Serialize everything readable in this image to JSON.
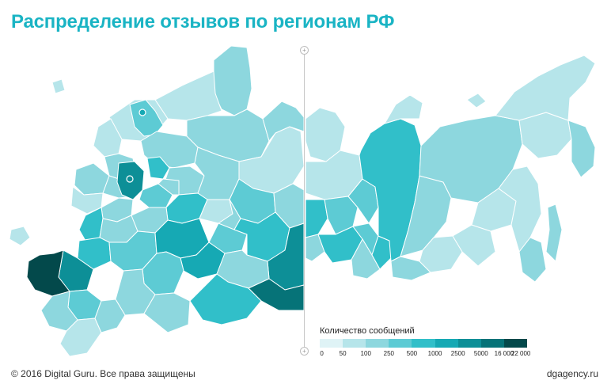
{
  "title": "Распределение отзывов по регионам РФ",
  "map": {
    "palette": [
      "#dff3f6",
      "#b6e5ea",
      "#8dd7de",
      "#5dcbd4",
      "#31bfc9",
      "#16a9b4",
      "#0d8f97",
      "#067378",
      "#03494b"
    ],
    "moscow_marker_color": "#0d8f97",
    "spb_marker_color": "#16a9b4"
  },
  "legend": {
    "title": "Количество сообщений",
    "bins": [
      "0",
      "50",
      "100",
      "250",
      "500",
      "1000",
      "2500",
      "5000",
      "16 000",
      "22 000"
    ]
  },
  "footer": {
    "copyright": "© 2016 Digital Guru. Все права защищены",
    "site": "dgagency.ru"
  },
  "splitter": {
    "top_glyph": "+",
    "bottom_glyph": "+"
  }
}
